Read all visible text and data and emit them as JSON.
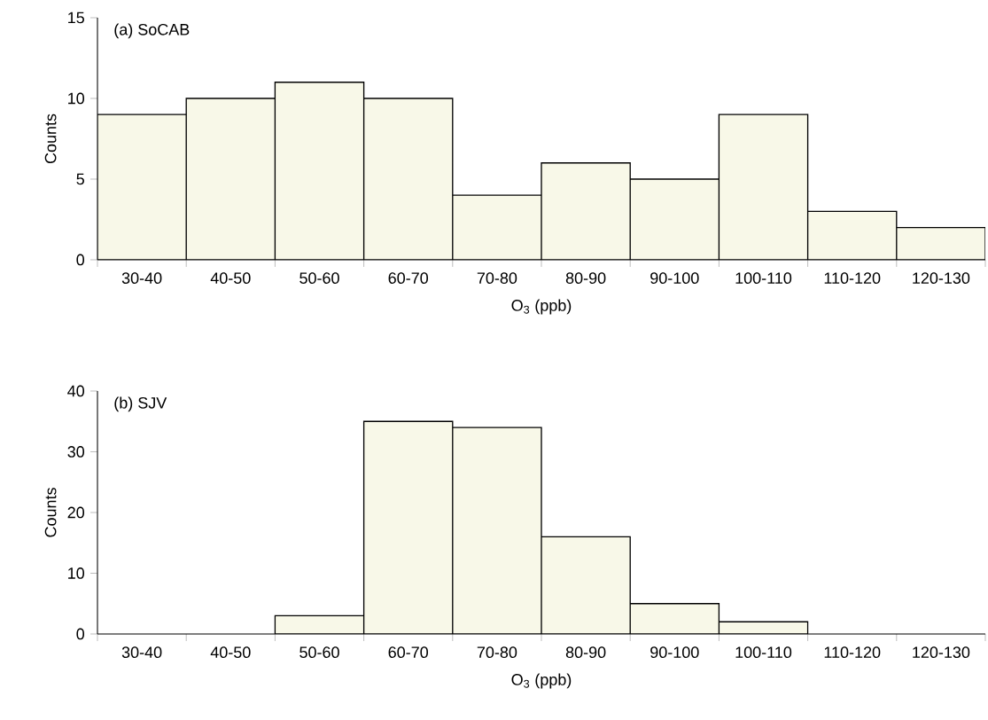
{
  "chart_data": [
    {
      "type": "bar",
      "title": "(a) SoCAB",
      "xlabel": "O$_{3}$ (ppb)",
      "ylabel": "Counts",
      "categories": [
        "30-40",
        "40-50",
        "50-60",
        "60-70",
        "70-80",
        "80-90",
        "90-100",
        "100-110",
        "110-120",
        "120-130"
      ],
      "values": [
        9,
        10,
        11,
        10,
        4,
        6,
        5,
        9,
        3,
        2
      ],
      "color": "#f8f8e8",
      "ylim": [
        0,
        15
      ],
      "yticks": [
        0,
        5,
        10,
        15
      ]
    },
    {
      "type": "bar",
      "title": "(b) SJV",
      "xlabel": "O$_{3}$ (ppb)",
      "ylabel": "Counts",
      "categories": [
        "30-40",
        "40-50",
        "50-60",
        "60-70",
        "70-80",
        "80-90",
        "90-100",
        "100-110",
        "110-120",
        "120-130"
      ],
      "values": [
        0,
        0,
        3,
        35,
        34,
        16,
        5,
        2,
        0,
        0
      ],
      "color": "#f8f8e8",
      "ylim": [
        0,
        40
      ],
      "yticks": [
        0,
        10,
        20,
        30,
        40
      ]
    }
  ]
}
